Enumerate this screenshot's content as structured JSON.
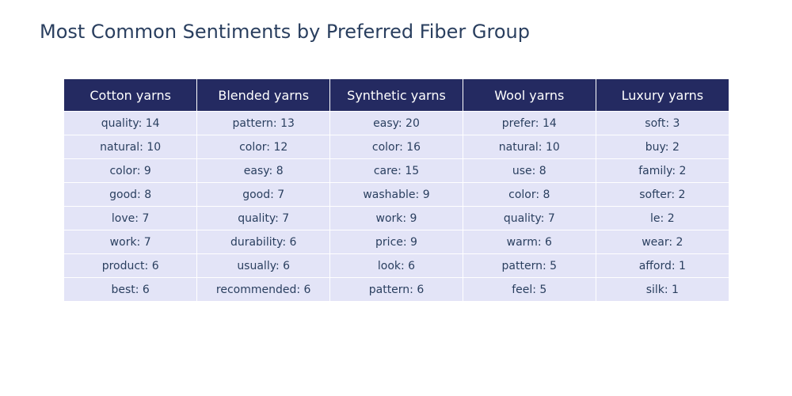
{
  "title": "Most Common Sentiments by Preferred Fiber Group",
  "colors": {
    "header_bg": "#242a61",
    "header_text": "#ffffff",
    "cell_bg": "#e3e4f7",
    "cell_text": "#2a3f5f"
  },
  "chart_data": {
    "type": "table",
    "title": "Most Common Sentiments by Preferred Fiber Group",
    "columns": [
      "Cotton yarns",
      "Blended yarns",
      "Synthetic yarns",
      "Wool yarns",
      "Luxury yarns"
    ],
    "rows": [
      [
        "quality: 14",
        "pattern: 13",
        "easy: 20",
        "prefer: 14",
        "soft: 3"
      ],
      [
        "natural: 10",
        "color: 12",
        "color: 16",
        "natural: 10",
        "buy: 2"
      ],
      [
        "color: 9",
        "easy: 8",
        "care: 15",
        "use: 8",
        "family: 2"
      ],
      [
        "good: 8",
        "good: 7",
        "washable: 9",
        "color: 8",
        "softer: 2"
      ],
      [
        "love: 7",
        "quality: 7",
        "work: 9",
        "quality: 7",
        "le: 2"
      ],
      [
        "work: 7",
        "durability: 6",
        "price: 9",
        "warm: 6",
        "wear: 2"
      ],
      [
        "product: 6",
        "usually: 6",
        "look: 6",
        "pattern: 5",
        "afford: 1"
      ],
      [
        "best: 6",
        "recommended: 6",
        "pattern: 6",
        "feel: 5",
        "silk: 1"
      ]
    ]
  }
}
